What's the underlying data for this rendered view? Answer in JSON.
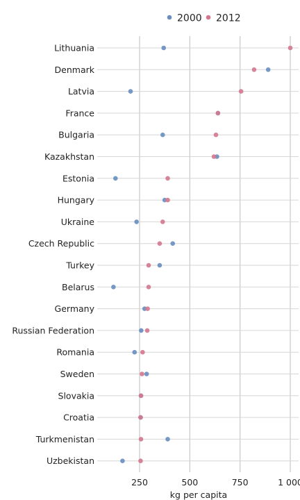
{
  "chart_data": {
    "type": "scatter",
    "title": "",
    "xlabel": "kg per capita",
    "ylabel": "",
    "xlim": [
      60,
      1050
    ],
    "xticks": [
      250,
      500,
      750,
      1000
    ],
    "xtick_labels": [
      "250",
      "500",
      "750",
      "1 000"
    ],
    "grid": true,
    "legend_position": "top",
    "categories": [
      "Lithuania",
      "Denmark",
      "Latvia",
      "France",
      "Bulgaria",
      "Kazakhstan",
      "Estonia",
      "Hungary",
      "Ukraine",
      "Czech Republic",
      "Turkey",
      "Belarus",
      "Germany",
      "Russian Federation",
      "Romania",
      "Sweden",
      "Slovakia",
      "Croatia",
      "Turkmenistan",
      "Uzbekistan"
    ],
    "series": [
      {
        "name": "2000",
        "color": "#6a8fbf",
        "values": [
          370,
          890,
          205,
          640,
          365,
          635,
          130,
          375,
          235,
          415,
          350,
          120,
          275,
          258,
          225,
          285,
          257,
          255,
          390,
          165
        ]
      },
      {
        "name": "2012",
        "color": "#d4788f",
        "values": [
          1000,
          820,
          755,
          640,
          630,
          620,
          390,
          390,
          365,
          350,
          295,
          295,
          290,
          288,
          265,
          262,
          257,
          255,
          257,
          255
        ]
      }
    ]
  }
}
